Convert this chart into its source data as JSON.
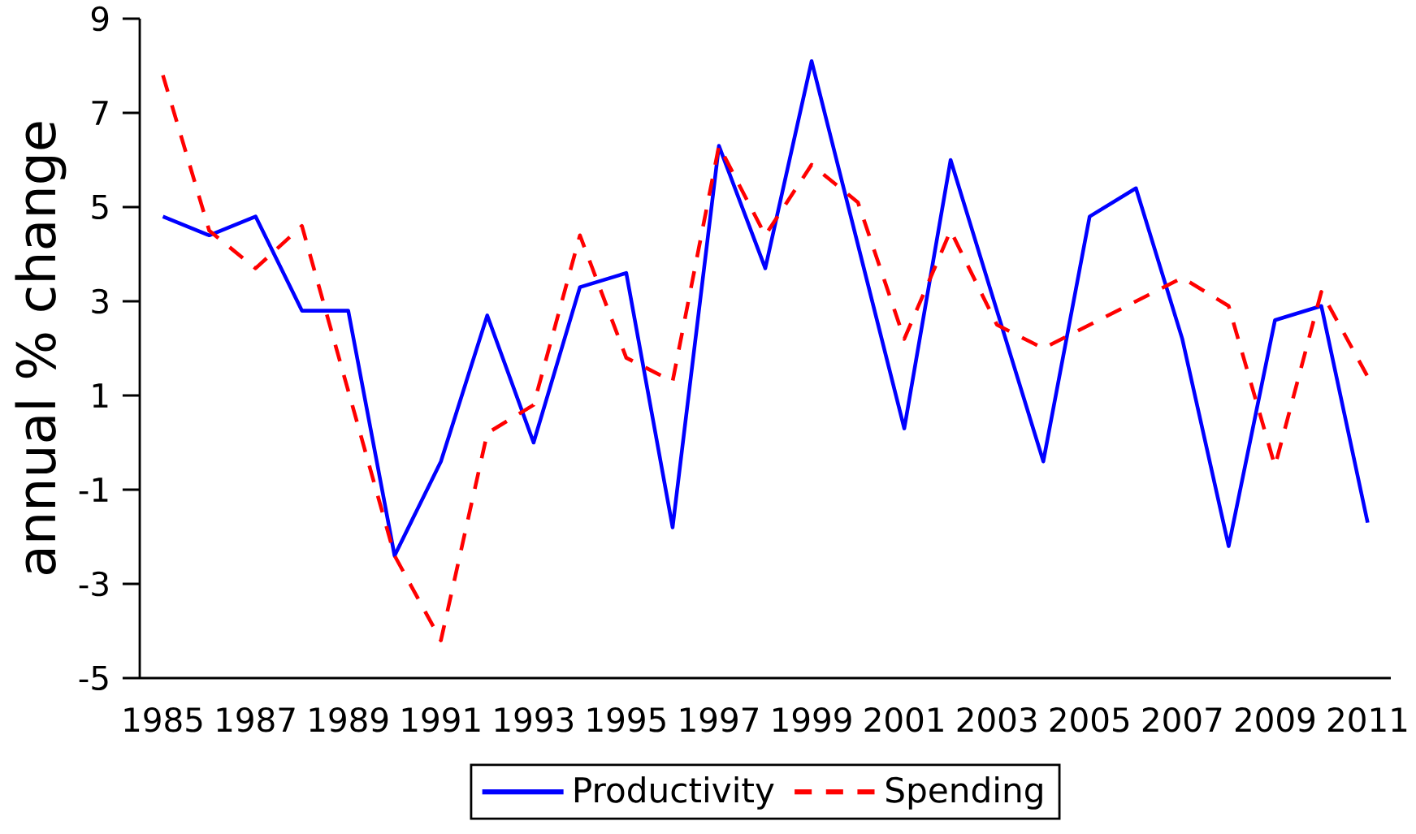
{
  "chart_data": {
    "type": "line",
    "ylabel": "annual % change",
    "categories": [
      "1985",
      null,
      "1987",
      null,
      "1989",
      null,
      "1991",
      null,
      "1993",
      null,
      "1995",
      null,
      "1997",
      null,
      "1999",
      null,
      "2001",
      null,
      "2003",
      null,
      "2005",
      null,
      "2007",
      null,
      "2009",
      null,
      "2011"
    ],
    "series": [
      {
        "name": "Productivity",
        "color": "#0000ff",
        "line_style": "solid",
        "values": [
          4.8,
          4.4,
          4.8,
          2.8,
          2.8,
          -2.4,
          -0.4,
          2.7,
          0.0,
          3.3,
          3.6,
          -1.8,
          6.3,
          3.7,
          8.1,
          4.2,
          0.3,
          6.0,
          2.8,
          -0.4,
          4.8,
          5.4,
          2.2,
          -2.2,
          2.6,
          2.9,
          -1.7
        ]
      },
      {
        "name": "Spending",
        "color": "#ff0000",
        "line_style": "dashed",
        "values": [
          7.8,
          4.5,
          3.7,
          4.6,
          1.1,
          -2.4,
          -4.2,
          0.2,
          0.8,
          4.4,
          1.8,
          1.3,
          6.3,
          4.4,
          5.9,
          5.1,
          2.2,
          4.5,
          2.5,
          2.0,
          2.5,
          3.0,
          3.5,
          2.9,
          -0.5,
          3.2,
          1.4
        ]
      }
    ],
    "ylim": [
      -5,
      9
    ],
    "yticks": [
      -5,
      -3,
      -1,
      1,
      3,
      5,
      7,
      9
    ],
    "legend": "bottom"
  }
}
